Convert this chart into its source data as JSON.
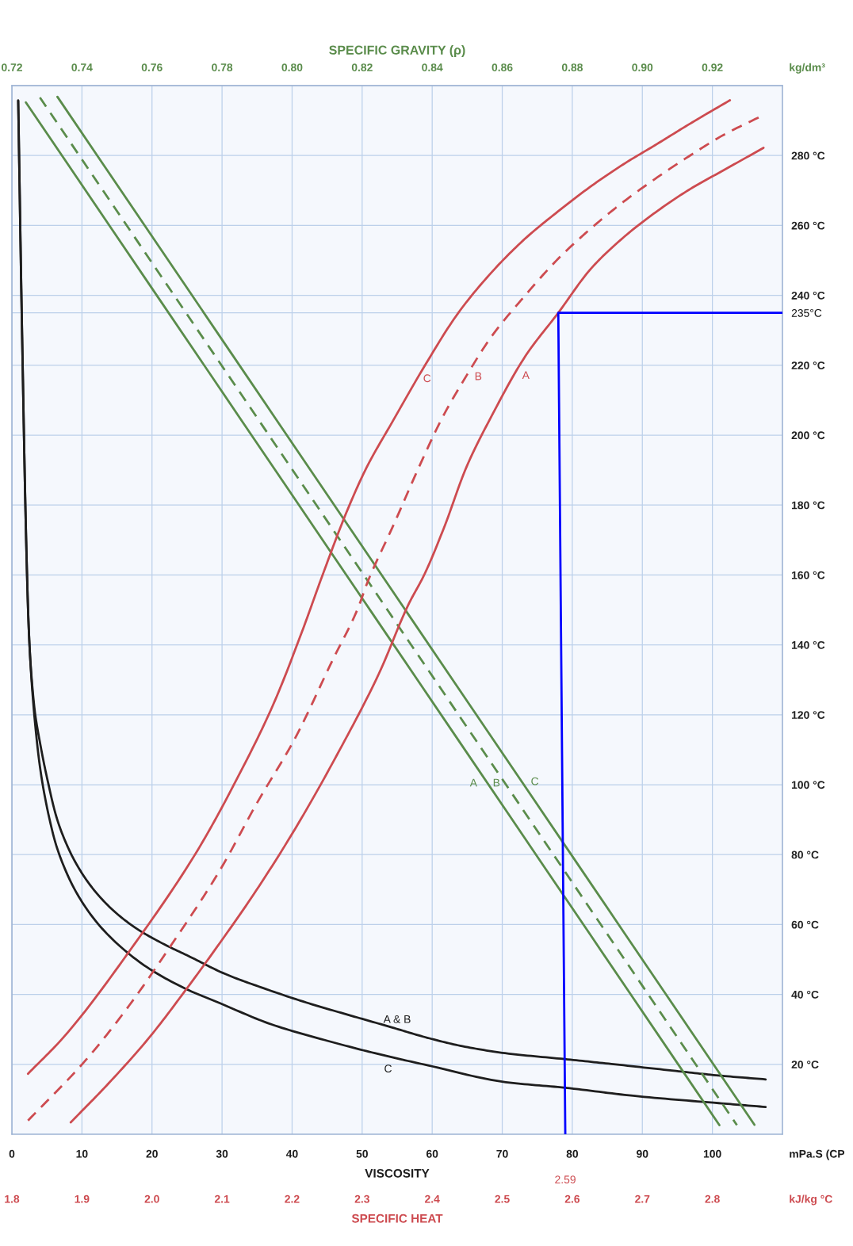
{
  "chart_data": [
    {
      "type": "line",
      "xlabel": "VISCOSITY",
      "x2label": "SPECIFIC GRAVITY (ρ)",
      "xlim": [
        0,
        110
      ],
      "xticks": [
        0,
        10,
        20,
        30,
        40,
        50,
        60,
        70,
        80,
        90,
        100
      ],
      "x2lim": [
        0.72,
        0.94
      ],
      "x2ticks": [
        0.72,
        0.74,
        0.76,
        0.78,
        {
          "value": 0.8,
          "label": "0.80"
        },
        0.82,
        0.84,
        0.86,
        0.88,
        {
          "value": 0.9,
          "label": "0.90"
        },
        0.92
      ],
      "ylim": [
        0,
        300
      ],
      "yticks": [
        {
          "value": 20,
          "label": "20 °C"
        },
        {
          "value": 40,
          "label": "40 °C"
        },
        {
          "value": 60,
          "label": "60 °C"
        },
        {
          "value": 80,
          "label": "80 °C"
        },
        {
          "value": 100,
          "label": "100 °C"
        },
        {
          "value": 120,
          "label": "120 °C"
        },
        {
          "value": 140,
          "label": "140 °C"
        },
        {
          "value": 160,
          "label": "160 °C"
        },
        {
          "value": 180,
          "label": "180 °C"
        },
        {
          "value": 200,
          "label": "200 °C"
        },
        {
          "value": 220,
          "label": "220 °C"
        },
        {
          "value": 240,
          "label": "240 °C"
        },
        {
          "value": 260,
          "label": "260 °C"
        },
        {
          "value": 280,
          "label": "280 °C"
        },
        {
          "value": 235,
          "label": "235°C"
        }
      ],
      "grid": true,
      "series": [
        {
          "name": "A & B",
          "color": "#1e1e1e",
          "line_style": "solid",
          "x": [
            0.9,
            1.5,
            2.2,
            2.5,
            3.2,
            4.2,
            5.2,
            6.4,
            8.3,
            10.8,
            13.9,
            17.6,
            21.2,
            25.5,
            30.4,
            35.9,
            42.0,
            48.1,
            54.2,
            59.3,
            64.3,
            70.4,
            78.9,
            85.6,
            94.8,
            100.9,
            107.6
          ],
          "values": [
            295.7,
            224.1,
            157.3,
            140.5,
            122.2,
            110.0,
            100.3,
            90.5,
            80.8,
            72.3,
            65.1,
            59.1,
            54.9,
            50.7,
            45.9,
            41.8,
            37.7,
            34.1,
            30.6,
            27.6,
            25.2,
            23.2,
            21.5,
            20.1,
            18.1,
            16.8,
            15.7
          ]
        },
        {
          "name": "C",
          "color": "#1e1e1e",
          "line_style": "solid",
          "x": [
            0.9,
            1.5,
            2.2,
            2.5,
            3.7,
            5.9,
            8.1,
            11.8,
            18.2,
            24.3,
            29.8,
            37.1,
            45.1,
            51.8,
            59.4,
            70.5,
            79.0,
            88.7,
            100.9,
            107.6
          ],
          "values": [
            295.7,
            224.1,
            157.3,
            140.5,
            110.0,
            85.7,
            73.5,
            61.4,
            49.3,
            42.1,
            37.4,
            31.4,
            26.7,
            23.2,
            19.7,
            14.9,
            13.3,
            11.0,
            8.9,
            7.8
          ]
        },
        {
          "name": "A",
          "axis": "x2",
          "color": "#5a8c4b",
          "line_style": "solid",
          "x": [
            0.724,
            0.922
          ],
          "values": [
            295.2,
            2.6
          ]
        },
        {
          "name": "B",
          "axis": "x2",
          "color": "#5a8c4b",
          "line_style": "dashed",
          "x": [
            0.728,
            0.927
          ],
          "values": [
            296.6,
            2.6
          ]
        },
        {
          "name": "C",
          "axis": "x2",
          "color": "#5a8c4b",
          "line_style": "solid",
          "x": [
            0.733,
            0.932
          ],
          "values": [
            296.8,
            2.7
          ]
        }
      ],
      "annotations": [
        "kg/dm³",
        "mPa.S (CP"
      ]
    },
    {
      "type": "line",
      "xlabel": "SPECIFIC HEAT",
      "xlim": [
        1.8,
        2.9
      ],
      "xticks": [
        1.8,
        1.9,
        {
          "value": 2,
          "label": "2.0"
        },
        2.1,
        2.2,
        2.3,
        2.4,
        2.5,
        2.6,
        2.7,
        2.8
      ],
      "ylim": [
        0,
        300
      ],
      "tick_labels": "x",
      "series": [
        {
          "name": "A",
          "color": "#cd4b50",
          "line_style": "solid",
          "x": [
            1.884,
            1.935,
            1.995,
            2.049,
            2.085,
            2.145,
            2.205,
            2.264,
            2.324,
            2.366,
            2.389,
            2.417,
            2.449,
            2.487,
            2.533,
            2.58,
            2.627,
            2.675,
            2.722,
            2.769,
            2.817,
            2.873
          ],
          "values": [
            3.4,
            13.9,
            27.4,
            41.5,
            51.4,
            68.6,
            87.6,
            108.5,
            131.8,
            151.5,
            160.2,
            173.6,
            190.9,
            206.3,
            222.6,
            235,
            247.7,
            256.9,
            264.2,
            270.5,
            275.9,
            282.2
          ]
        },
        {
          "name": "B",
          "color": "#cd4b50",
          "line_style": "dashed",
          "x": [
            1.823,
            1.905,
            1.964,
            2.024,
            2.096,
            2.15,
            2.204,
            2.257,
            2.293,
            2.308,
            2.345,
            2.383,
            2.415,
            2.448,
            2.485,
            2.532,
            2.58,
            2.627,
            2.674,
            2.721,
            2.769,
            2.816,
            2.868
          ],
          "values": [
            3.9,
            21.1,
            35.9,
            53.1,
            75.2,
            94.8,
            113.2,
            135.3,
            150.0,
            158.1,
            174.4,
            191.7,
            205.2,
            216.7,
            228.3,
            239.8,
            250.5,
            259.2,
            266.9,
            273.7,
            280.1,
            285.9,
            291.1
          ]
        },
        {
          "name": "C",
          "color": "#cd4b50",
          "line_style": "solid",
          "x": [
            1.823,
            1.874,
            1.97,
            2.065,
            2.119,
            2.173,
            2.214,
            2.243,
            2.278,
            2.306,
            2.344,
            2.391,
            2.437,
            2.484,
            2.532,
            2.579,
            2.626,
            2.673,
            2.721,
            2.768,
            2.825
          ],
          "values": [
            17.3,
            27.8,
            53.0,
            81.2,
            100.8,
            122.9,
            143.7,
            159.7,
            178.1,
            190.6,
            204.1,
            220.4,
            234.9,
            246.4,
            256.1,
            263.9,
            271.1,
            277.5,
            283.3,
            289.1,
            295.8
          ]
        },
        {
          "color": "#0000ff",
          "line_style": "solid",
          "x": [
            2.59,
            2.58,
            2.9
          ],
          "values": [
            0,
            235,
            235
          ]
        }
      ],
      "annotations": [
        "kJ/kg °C",
        "2.59"
      ]
    }
  ]
}
